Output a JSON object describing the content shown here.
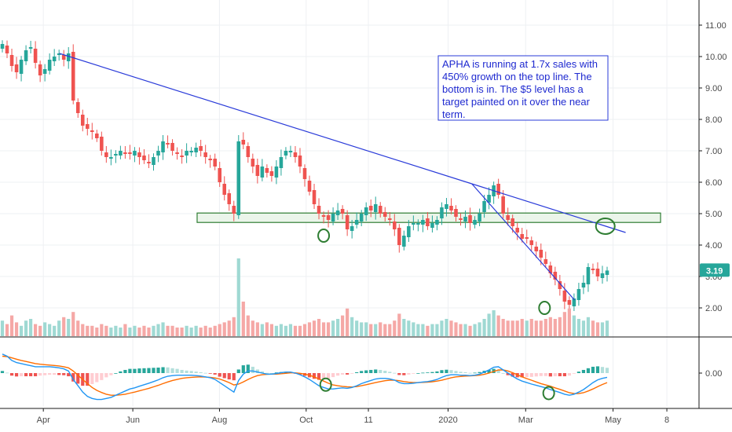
{
  "chart_data": {
    "type": "candlestick",
    "ticker_note": [
      "APHA is running at 1.7x sales with",
      "450% growth on the top line. The",
      "bottom is in. The $5 level has a",
      "target painted on it over the near",
      "term."
    ],
    "x_ticks": [
      "Apr",
      "Jun",
      "Aug",
      "Oct",
      "11",
      "2020",
      "Mar",
      "May",
      "8"
    ],
    "price_axis": {
      "ticks": [
        "11.00",
        "10.00",
        "9.00",
        "8.00",
        "7.00",
        "6.00",
        "5.00",
        "4.00",
        "3.00",
        "2.00"
      ],
      "ylim": [
        1.1,
        11.6
      ],
      "current_price": 3.19,
      "current_price_label": "3.19"
    },
    "macd_axis": {
      "ticks": [
        "0.00"
      ],
      "ylim": [
        -1.6,
        1.6
      ]
    },
    "price_series": [
      10.4,
      10.1,
      9.7,
      9.5,
      9.9,
      10.2,
      10.3,
      9.8,
      9.4,
      9.6,
      9.9,
      10.0,
      10.1,
      9.9,
      10.1,
      8.6,
      8.2,
      7.8,
      7.7,
      7.6,
      7.4,
      7.0,
      6.8,
      6.8,
      6.9,
      7.0,
      6.9,
      6.9,
      7.0,
      6.8,
      6.7,
      6.6,
      6.8,
      7.0,
      7.3,
      7.2,
      7.0,
      6.9,
      6.8,
      7.0,
      7.0,
      7.1,
      7.0,
      6.8,
      6.7,
      6.5,
      6.0,
      5.6,
      5.3,
      5.0,
      7.3,
      7.2,
      6.8,
      6.5,
      6.2,
      6.5,
      6.3,
      6.2,
      6.5,
      6.8,
      7.0,
      7.0,
      6.8,
      6.5,
      6.1,
      5.7,
      5.3,
      5.0,
      4.9,
      4.8,
      5.0,
      5.1,
      5.0,
      4.5,
      4.6,
      4.8,
      5.0,
      5.2,
      5.1,
      5.3,
      5.0,
      4.9,
      4.8,
      4.5,
      4.0,
      4.3,
      4.6,
      4.7,
      4.7,
      4.8,
      4.6,
      4.7,
      4.8,
      5.2,
      5.3,
      5.1,
      4.9,
      4.8,
      4.9,
      4.7,
      4.8,
      5.0,
      5.4,
      5.6,
      5.9,
      5.6,
      5.0,
      4.8,
      4.6,
      4.4,
      4.2,
      4.2,
      4.0,
      3.8,
      3.6,
      3.4,
      3.1,
      2.9,
      2.6,
      2.2,
      2.1,
      2.3,
      2.6,
      2.8,
      3.3,
      3.2,
      3.0,
      3.1,
      3.19
    ],
    "volume_series": [
      0.9,
      0.7,
      1.2,
      0.8,
      0.6,
      0.9,
      1.0,
      0.7,
      0.6,
      0.8,
      0.7,
      0.6,
      0.9,
      1.1,
      1.0,
      1.4,
      0.9,
      0.7,
      0.6,
      0.6,
      0.5,
      0.7,
      0.6,
      0.5,
      0.6,
      0.5,
      0.7,
      0.5,
      0.6,
      0.5,
      0.6,
      0.5,
      0.6,
      0.7,
      0.8,
      0.6,
      0.6,
      0.5,
      0.5,
      0.6,
      0.5,
      0.6,
      0.5,
      0.6,
      0.5,
      0.6,
      0.7,
      0.8,
      0.9,
      1.1,
      4.5,
      2.0,
      1.2,
      0.9,
      0.8,
      0.7,
      0.8,
      0.7,
      0.6,
      0.7,
      0.6,
      0.7,
      0.6,
      0.6,
      0.7,
      0.8,
      0.9,
      1.0,
      0.8,
      0.8,
      0.9,
      1.0,
      1.2,
      1.6,
      1.1,
      0.9,
      0.8,
      0.8,
      0.7,
      0.7,
      0.8,
      0.7,
      0.7,
      0.9,
      1.3,
      1.0,
      0.9,
      0.8,
      0.7,
      0.7,
      0.6,
      0.7,
      0.7,
      0.9,
      1.0,
      0.9,
      0.8,
      0.7,
      0.7,
      0.6,
      0.7,
      0.8,
      1.0,
      1.3,
      1.5,
      1.2,
      1.0,
      0.9,
      0.9,
      0.9,
      1.0,
      0.9,
      1.0,
      0.9,
      0.9,
      1.0,
      1.1,
      1.0,
      1.1,
      1.4,
      1.6,
      1.2,
      1.0,
      0.9,
      1.1,
      0.9,
      0.8,
      0.8,
      0.9
    ],
    "macd_line": [
      0.9,
      0.8,
      0.6,
      0.5,
      0.45,
      0.4,
      0.35,
      0.3,
      0.3,
      0.3,
      0.3,
      0.28,
      0.25,
      0.2,
      0.1,
      -0.3,
      -0.6,
      -0.9,
      -1.1,
      -1.2,
      -1.25,
      -1.25,
      -1.2,
      -1.15,
      -1.05,
      -0.95,
      -0.85,
      -0.75,
      -0.7,
      -0.62,
      -0.55,
      -0.48,
      -0.4,
      -0.32,
      -0.22,
      -0.15,
      -0.12,
      -0.1,
      -0.1,
      -0.1,
      -0.1,
      -0.12,
      -0.14,
      -0.18,
      -0.22,
      -0.3,
      -0.45,
      -0.6,
      -0.75,
      -0.9,
      -0.35,
      -0.05,
      0.1,
      0.1,
      0.05,
      0.0,
      -0.05,
      -0.05,
      -0.02,
      0.02,
      0.05,
      0.05,
      0.0,
      -0.08,
      -0.18,
      -0.3,
      -0.45,
      -0.6,
      -0.68,
      -0.75,
      -0.75,
      -0.72,
      -0.7,
      -0.72,
      -0.68,
      -0.6,
      -0.5,
      -0.42,
      -0.35,
      -0.28,
      -0.25,
      -0.25,
      -0.28,
      -0.33,
      -0.45,
      -0.5,
      -0.5,
      -0.48,
      -0.45,
      -0.42,
      -0.4,
      -0.36,
      -0.3,
      -0.2,
      -0.12,
      -0.08,
      -0.08,
      -0.1,
      -0.1,
      -0.12,
      -0.1,
      -0.05,
      0.05,
      0.15,
      0.28,
      0.3,
      0.15,
      0.0,
      -0.15,
      -0.28,
      -0.38,
      -0.45,
      -0.52,
      -0.58,
      -0.64,
      -0.7,
      -0.78,
      -0.85,
      -0.92,
      -1.0,
      -1.05,
      -1.0,
      -0.9,
      -0.78,
      -0.62,
      -0.45,
      -0.32,
      -0.25,
      -0.2
    ],
    "signal_line": [
      0.8,
      0.78,
      0.72,
      0.66,
      0.6,
      0.55,
      0.5,
      0.45,
      0.42,
      0.4,
      0.38,
      0.36,
      0.34,
      0.3,
      0.25,
      0.1,
      -0.1,
      -0.3,
      -0.5,
      -0.68,
      -0.82,
      -0.92,
      -1.0,
      -1.05,
      -1.05,
      -1.03,
      -1.0,
      -0.95,
      -0.9,
      -0.84,
      -0.78,
      -0.72,
      -0.65,
      -0.58,
      -0.5,
      -0.42,
      -0.35,
      -0.3,
      -0.25,
      -0.22,
      -0.2,
      -0.19,
      -0.18,
      -0.19,
      -0.2,
      -0.23,
      -0.28,
      -0.36,
      -0.45,
      -0.56,
      -0.52,
      -0.42,
      -0.3,
      -0.2,
      -0.12,
      -0.08,
      -0.06,
      -0.05,
      -0.05,
      -0.03,
      -0.01,
      0.01,
      0.01,
      -0.01,
      -0.05,
      -0.1,
      -0.18,
      -0.28,
      -0.38,
      -0.48,
      -0.56,
      -0.6,
      -0.63,
      -0.65,
      -0.66,
      -0.64,
      -0.6,
      -0.55,
      -0.5,
      -0.45,
      -0.4,
      -0.36,
      -0.34,
      -0.34,
      -0.36,
      -0.4,
      -0.43,
      -0.45,
      -0.45,
      -0.44,
      -0.43,
      -0.41,
      -0.38,
      -0.34,
      -0.28,
      -0.22,
      -0.18,
      -0.16,
      -0.14,
      -0.13,
      -0.12,
      -0.1,
      -0.06,
      0.0,
      0.08,
      0.15,
      0.15,
      0.1,
      0.02,
      -0.08,
      -0.18,
      -0.26,
      -0.34,
      -0.42,
      -0.5,
      -0.56,
      -0.62,
      -0.7,
      -0.77,
      -0.85,
      -0.93,
      -0.97,
      -0.97,
      -0.93,
      -0.85,
      -0.75,
      -0.64,
      -0.54,
      -0.45
    ],
    "trendlines": [
      {
        "from": [
          0.085,
          10.1
        ],
        "to": [
          0.675,
          5.95
        ],
        "color": "#2a3bd9"
      },
      {
        "from": [
          0.675,
          5.95
        ],
        "to": [
          0.895,
          4.4
        ],
        "color": "#2a3bd9"
      },
      {
        "from": [
          0.675,
          5.95
        ],
        "to": [
          0.822,
          2.25
        ],
        "color": "#2a3bd9"
      }
    ],
    "support_zone": {
      "x": [
        0.282,
        0.945
      ],
      "y": [
        4.72,
        5.02
      ],
      "fill": "#e8f3e6",
      "stroke": "#2e7d32"
    },
    "marker_circles": [
      {
        "pane": "price",
        "x": 0.463,
        "y": 4.3
      },
      {
        "pane": "price",
        "x": 0.779,
        "y": 2.0
      },
      {
        "pane": "price",
        "x": 0.866,
        "y": 4.6
      },
      {
        "pane": "macd",
        "x": 0.466,
        "y": -0.55
      },
      {
        "pane": "macd",
        "x": 0.785,
        "y": -0.95
      }
    ],
    "colors": {
      "up": "#26a69a",
      "down": "#ef5350",
      "macd_line": "#2196f3",
      "signal_line": "#ff6d00",
      "trendline": "#2a3bd9",
      "marker": "#2e7d32",
      "price_tag": "#26a69a"
    }
  }
}
